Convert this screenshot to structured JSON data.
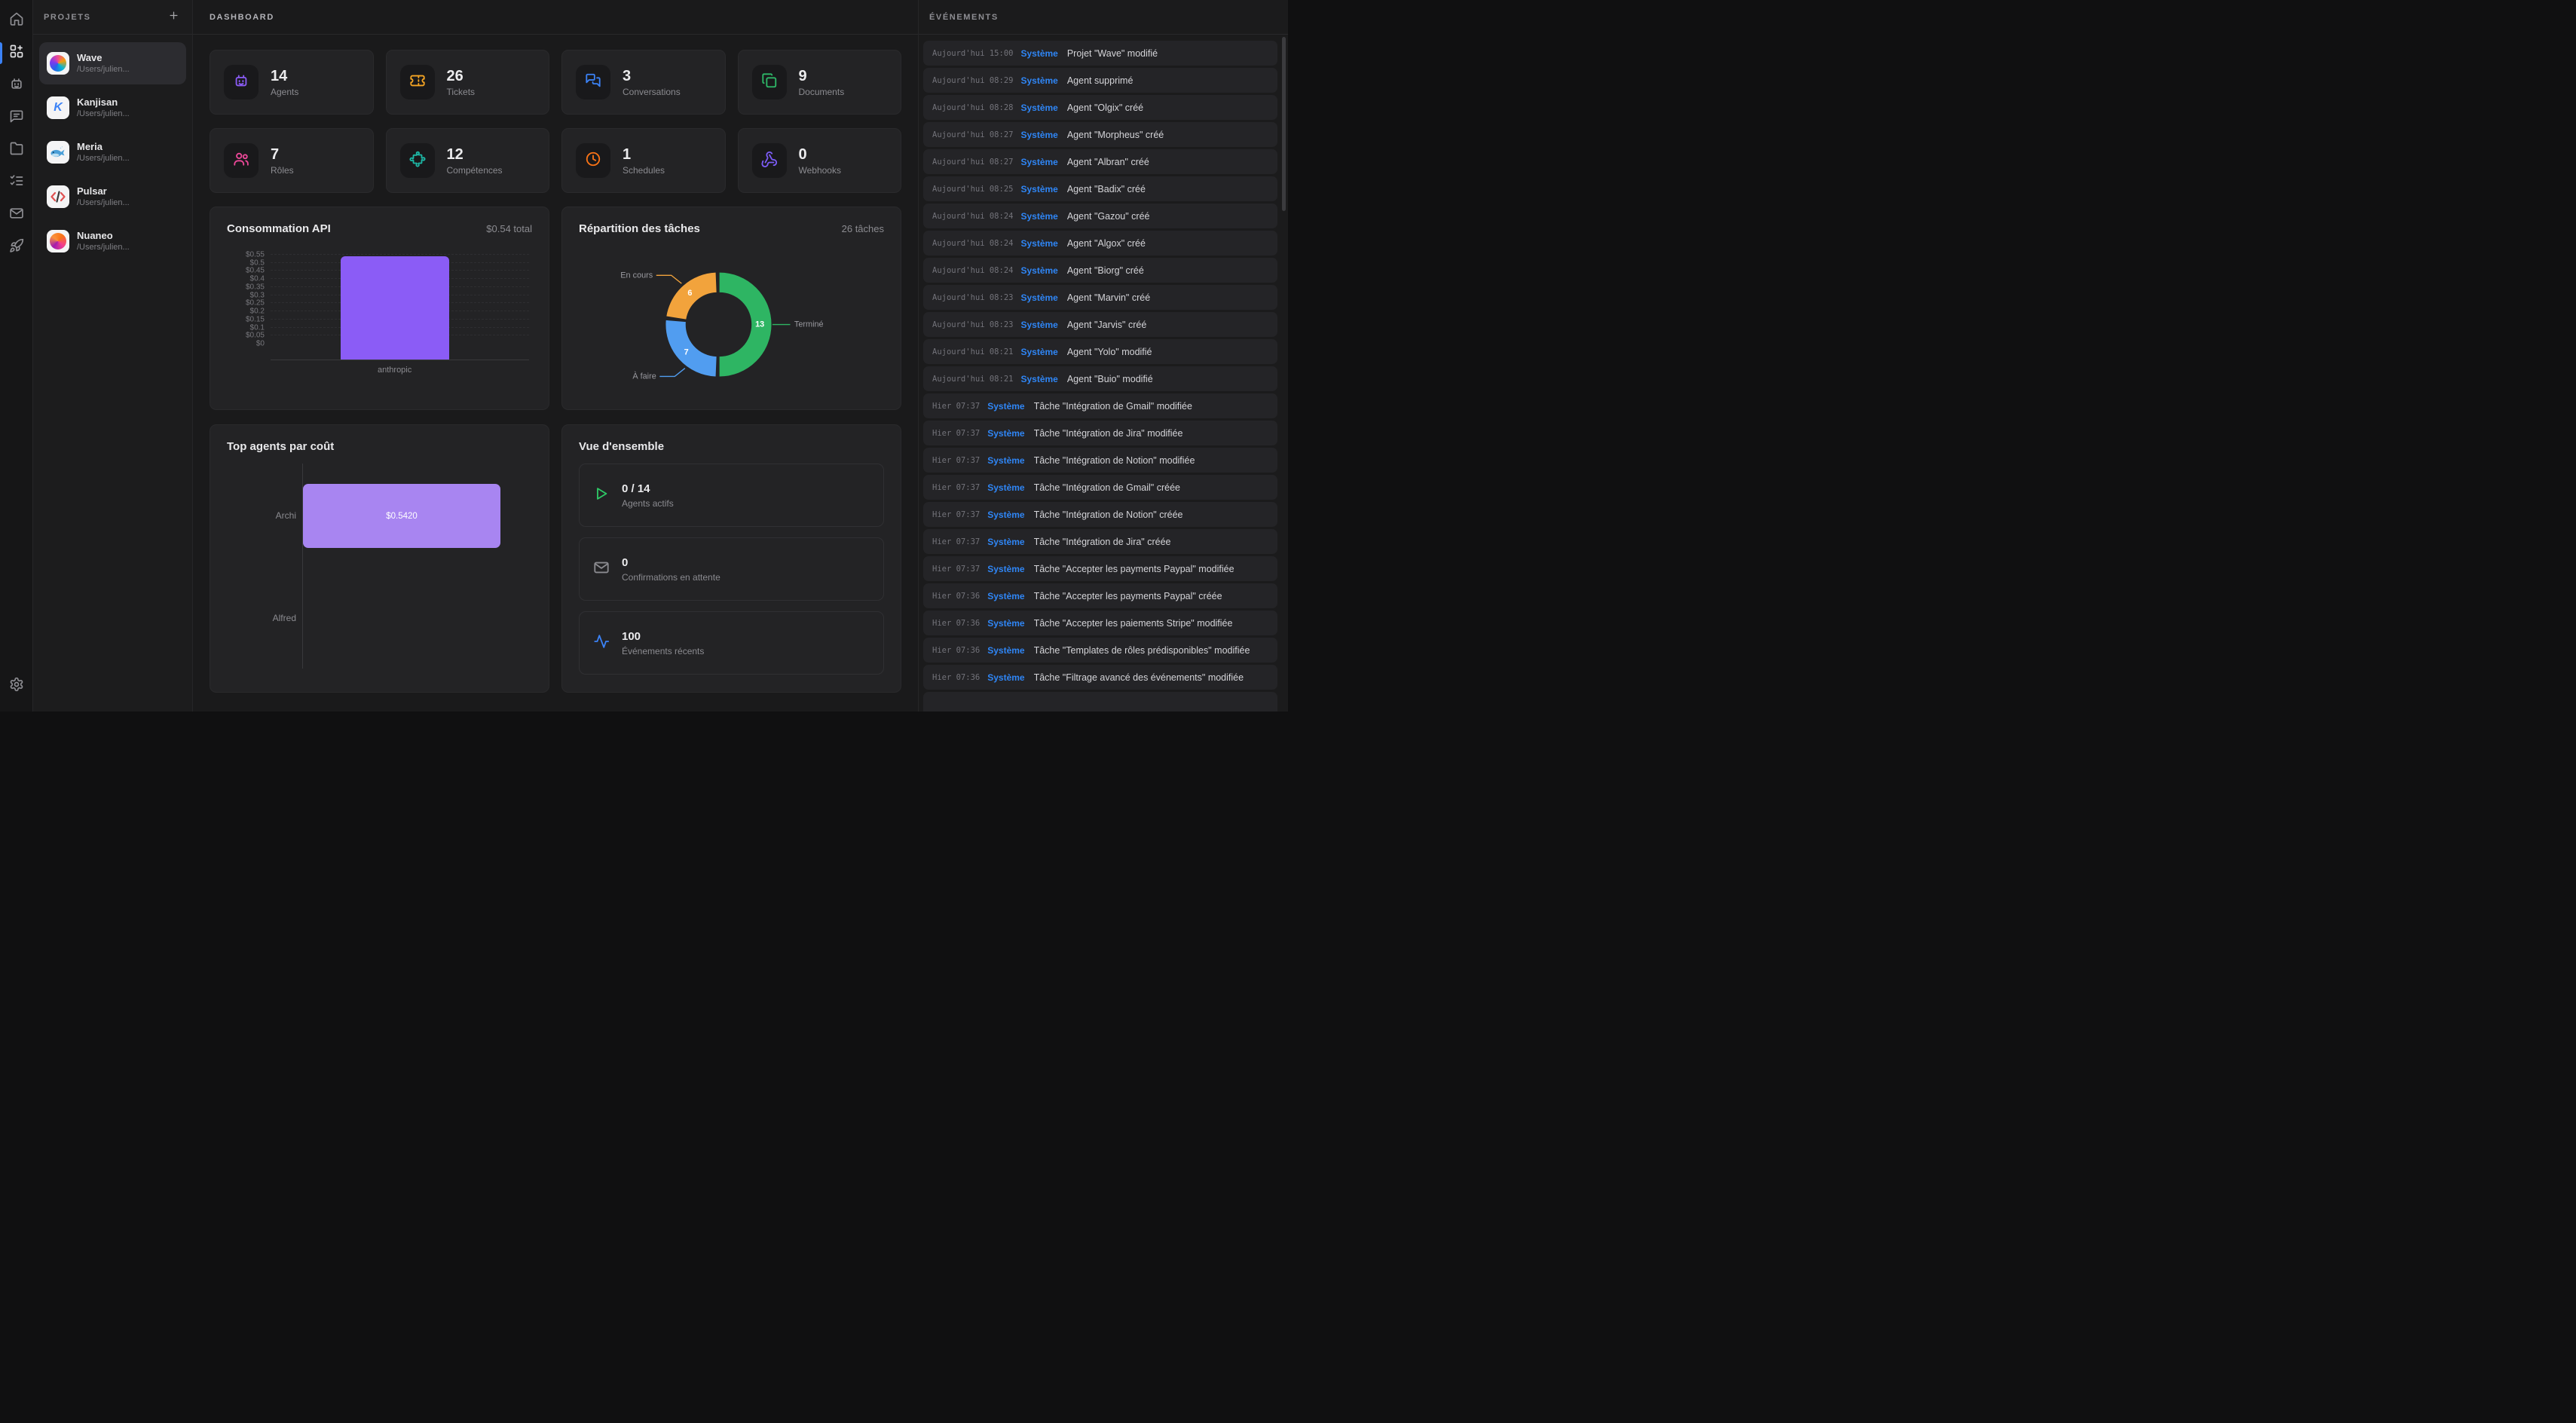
{
  "rail": {
    "items": [
      {
        "icon": "home-icon",
        "active": false
      },
      {
        "icon": "grid-plus-icon",
        "active": true
      },
      {
        "icon": "bot-icon",
        "active": false
      },
      {
        "icon": "message-icon",
        "active": false
      },
      {
        "icon": "folder-icon",
        "active": false
      },
      {
        "icon": "list-todo-icon",
        "active": false
      },
      {
        "icon": "mail-icon",
        "active": false
      },
      {
        "icon": "rocket-icon",
        "active": false
      }
    ],
    "bottom_items": [
      {
        "icon": "gear-icon"
      }
    ]
  },
  "projects_panel": {
    "title": "PROJETS",
    "add_icon": "plus-icon",
    "items": [
      {
        "name": "Wave",
        "path": "/Users/julien...",
        "logo": "wave-logo",
        "selected": true
      },
      {
        "name": "Kanjisan",
        "path": "/Users/julien...",
        "logo": "k-logo",
        "selected": false
      },
      {
        "name": "Meria",
        "path": "/Users/julien...",
        "logo": "whale-logo",
        "selected": false
      },
      {
        "name": "Pulsar",
        "path": "/Users/julien...",
        "logo": "code-logo",
        "selected": false
      },
      {
        "name": "Nuaneo",
        "path": "/Users/julien...",
        "logo": "swirl-logo",
        "selected": false
      }
    ]
  },
  "main": {
    "title": "DASHBOARD",
    "stats": [
      {
        "value": "14",
        "label": "Agents",
        "icon": "bot-icon",
        "color": "#8b5cf6"
      },
      {
        "value": "26",
        "label": "Tickets",
        "icon": "ticket-icon",
        "color": "#f5a524"
      },
      {
        "value": "3",
        "label": "Conversations",
        "icon": "messages-icon",
        "color": "#3b82f6"
      },
      {
        "value": "9",
        "label": "Documents",
        "icon": "copy-icon",
        "color": "#2eb868"
      },
      {
        "value": "7",
        "label": "Rôles",
        "icon": "users-icon",
        "color": "#ec4899"
      },
      {
        "value": "12",
        "label": "Compétences",
        "icon": "puzzle-icon",
        "color": "#1db8a6"
      },
      {
        "value": "1",
        "label": "Schedules",
        "icon": "clock-icon",
        "color": "#f97316"
      },
      {
        "value": "0",
        "label": "Webhooks",
        "icon": "webhook-icon",
        "color": "#7c5cf6"
      }
    ]
  },
  "chart_data": [
    {
      "type": "bar",
      "title": "Consommation API",
      "subtitle": "$0.54 total",
      "categories": [
        "anthropic"
      ],
      "values": [
        0.54
      ],
      "ylim": [
        0,
        0.55
      ],
      "yticks": [
        "$0",
        "$0.05",
        "$0.1",
        "$0.15",
        "$0.2",
        "$0.25",
        "$0.3",
        "$0.35",
        "$0.4",
        "$0.45",
        "$0.5",
        "$0.55"
      ],
      "grid": "dashed",
      "bar_color": "#8b5cf6"
    },
    {
      "type": "donut",
      "title": "Répartition des tâches",
      "subtitle": "26 tâches",
      "total": 26,
      "segments": [
        {
          "label": "Terminé",
          "value": 13,
          "color": "#2eb563"
        },
        {
          "label": "À faire",
          "value": 7,
          "color": "#519df0"
        },
        {
          "label": "En cours",
          "value": 6,
          "color": "#f2a33c"
        }
      ]
    },
    {
      "type": "bar-horizontal",
      "title": "Top agents par coût",
      "categories": [
        "Archi",
        "Alfred"
      ],
      "values": [
        0.542,
        0
      ],
      "value_labels": [
        "$0.5420",
        ""
      ],
      "bar_color": "#a885f1"
    }
  ],
  "overview": {
    "title": "Vue d'ensemble",
    "items": [
      {
        "value": "0 / 14",
        "label": "Agents actifs",
        "icon": "play-icon",
        "color": "#2ec866"
      },
      {
        "value": "0",
        "label": "Confirmations en attente",
        "icon": "mail-icon",
        "color": "#8b8b90"
      },
      {
        "value": "100",
        "label": "Événements récents",
        "icon": "activity-icon",
        "color": "#3b82f6"
      }
    ]
  },
  "events_panel": {
    "title": "ÉVÉNEMENTS",
    "author_color": "#2f86f6",
    "events": [
      {
        "time": "Aujourd'hui 15:00",
        "author": "Système",
        "text": "Projet \"Wave\" modifié"
      },
      {
        "time": "Aujourd'hui 08:29",
        "author": "Système",
        "text": "Agent supprimé"
      },
      {
        "time": "Aujourd'hui 08:28",
        "author": "Système",
        "text": "Agent \"Olgix\" créé"
      },
      {
        "time": "Aujourd'hui 08:27",
        "author": "Système",
        "text": "Agent \"Morpheus\" créé"
      },
      {
        "time": "Aujourd'hui 08:27",
        "author": "Système",
        "text": "Agent \"Albran\" créé"
      },
      {
        "time": "Aujourd'hui 08:25",
        "author": "Système",
        "text": "Agent \"Badix\" créé"
      },
      {
        "time": "Aujourd'hui 08:24",
        "author": "Système",
        "text": "Agent \"Gazou\" créé"
      },
      {
        "time": "Aujourd'hui 08:24",
        "author": "Système",
        "text": "Agent \"Algox\" créé"
      },
      {
        "time": "Aujourd'hui 08:24",
        "author": "Système",
        "text": "Agent \"Biorg\" créé"
      },
      {
        "time": "Aujourd'hui 08:23",
        "author": "Système",
        "text": "Agent \"Marvin\" créé"
      },
      {
        "time": "Aujourd'hui 08:23",
        "author": "Système",
        "text": "Agent \"Jarvis\" créé"
      },
      {
        "time": "Aujourd'hui 08:21",
        "author": "Système",
        "text": "Agent \"Yolo\" modifié"
      },
      {
        "time": "Aujourd'hui 08:21",
        "author": "Système",
        "text": "Agent \"Buio\" modifié"
      },
      {
        "time": "Hier 07:37",
        "author": "Système",
        "text": "Tâche \"Intégration de Gmail\" modifiée"
      },
      {
        "time": "Hier 07:37",
        "author": "Système",
        "text": "Tâche \"Intégration de Jira\" modifiée"
      },
      {
        "time": "Hier 07:37",
        "author": "Système",
        "text": "Tâche \"Intégration de Notion\" modifiée"
      },
      {
        "time": "Hier 07:37",
        "author": "Système",
        "text": "Tâche \"Intégration de Gmail\" créée"
      },
      {
        "time": "Hier 07:37",
        "author": "Système",
        "text": "Tâche \"Intégration de Notion\" créée"
      },
      {
        "time": "Hier 07:37",
        "author": "Système",
        "text": "Tâche \"Intégration de Jira\" créée"
      },
      {
        "time": "Hier 07:37",
        "author": "Système",
        "text": "Tâche \"Accepter les payments Paypal\" modifiée"
      },
      {
        "time": "Hier 07:36",
        "author": "Système",
        "text": "Tâche \"Accepter les payments Paypal\" créée"
      },
      {
        "time": "Hier 07:36",
        "author": "Système",
        "text": "Tâche \"Accepter les paiements Stripe\" modifiée"
      },
      {
        "time": "Hier 07:36",
        "author": "Système",
        "text": "Tâche \"Templates de rôles prédisponibles\" modifiée"
      },
      {
        "time": "Hier 07:36",
        "author": "Système",
        "text": "Tâche \"Filtrage avancé des événements\" modifiée"
      }
    ]
  }
}
